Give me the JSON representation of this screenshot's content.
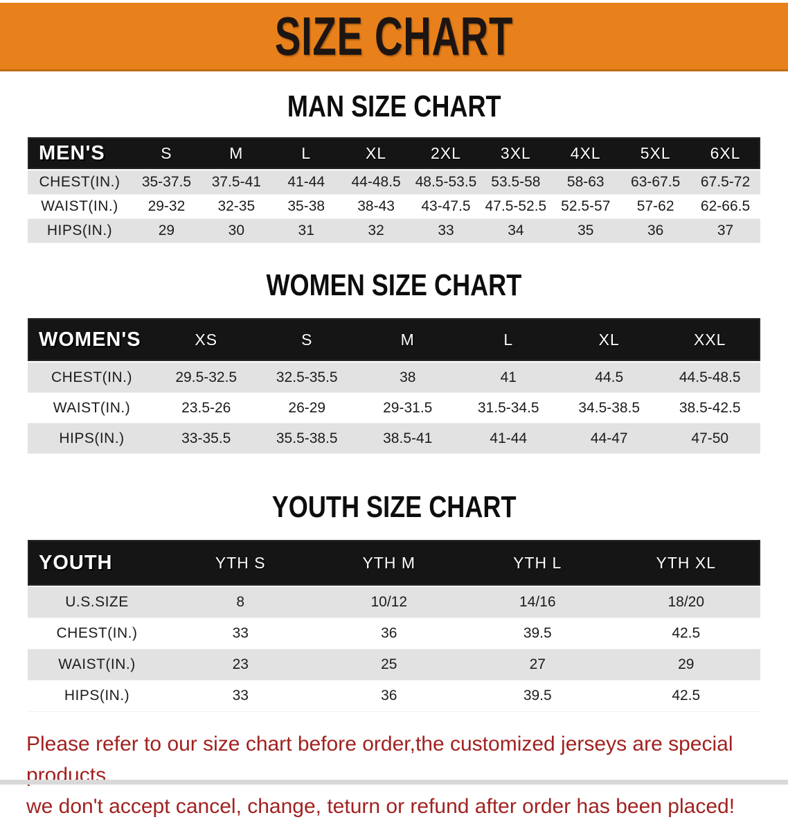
{
  "banner": {
    "title": "SIZE CHART",
    "bg_color": "#e8811b",
    "text_color": "#1d1512"
  },
  "colors": {
    "table_header_bg": "#151515",
    "table_header_text": "#ffffff",
    "row_shade": "#e3e2e2",
    "footer_text": "#a02220"
  },
  "sections": [
    {
      "heading": "MAN SIZE CHART",
      "table": {
        "header_label": "MEN'S",
        "columns": [
          "S",
          "M",
          "L",
          "XL",
          "2XL",
          "3XL",
          "4XL",
          "5XL",
          "6XL"
        ],
        "rows": [
          {
            "label": "CHEST(IN.)",
            "values": [
              "35-37.5",
              "37.5-41",
              "41-44",
              "44-48.5",
              "48.5-53.5",
              "53.5-58",
              "58-63",
              "63-67.5",
              "67.5-72"
            ]
          },
          {
            "label": "WAIST(IN.)",
            "values": [
              "29-32",
              "32-35",
              "35-38",
              "38-43",
              "43-47.5",
              "47.5-52.5",
              "52.5-57",
              "57-62",
              "62-66.5"
            ]
          },
          {
            "label": "HIPS(IN.)",
            "values": [
              "29",
              "30",
              "31",
              "32",
              "33",
              "34",
              "35",
              "36",
              "37"
            ]
          }
        ]
      }
    },
    {
      "heading": "WOMEN SIZE CHART",
      "table": {
        "header_label": "WOMEN'S",
        "columns": [
          "XS",
          "S",
          "M",
          "L",
          "XL",
          "XXL"
        ],
        "rows": [
          {
            "label": "CHEST(IN.)",
            "values": [
              "29.5-32.5",
              "32.5-35.5",
              "38",
              "41",
              "44.5",
              "44.5-48.5"
            ]
          },
          {
            "label": "WAIST(IN.)",
            "values": [
              "23.5-26",
              "26-29",
              "29-31.5",
              "31.5-34.5",
              "34.5-38.5",
              "38.5-42.5"
            ]
          },
          {
            "label": "HIPS(IN.)",
            "values": [
              "33-35.5",
              "35.5-38.5",
              "38.5-41",
              "41-44",
              "44-47",
              "47-50"
            ]
          }
        ]
      }
    },
    {
      "heading": "YOUTH SIZE CHART",
      "table": {
        "header_label": "YOUTH",
        "columns": [
          "YTH S",
          "YTH M",
          "YTH L",
          "YTH XL"
        ],
        "rows": [
          {
            "label": "U.S.SIZE",
            "values": [
              "8",
              "10/12",
              "14/16",
              "18/20"
            ]
          },
          {
            "label": "CHEST(IN.)",
            "values": [
              "33",
              "36",
              "39.5",
              "42.5"
            ]
          },
          {
            "label": "WAIST(IN.)",
            "values": [
              "23",
              "25",
              "27",
              "29"
            ]
          },
          {
            "label": "HIPS(IN.)",
            "values": [
              "33",
              "36",
              "39.5",
              "42.5"
            ]
          }
        ]
      }
    }
  ],
  "footer": {
    "line1": "Please refer to our size chart before order,the customized jerseys are special products,",
    "line2": "we don't accept cancel, change, teturn or refund after order has been placed!"
  }
}
